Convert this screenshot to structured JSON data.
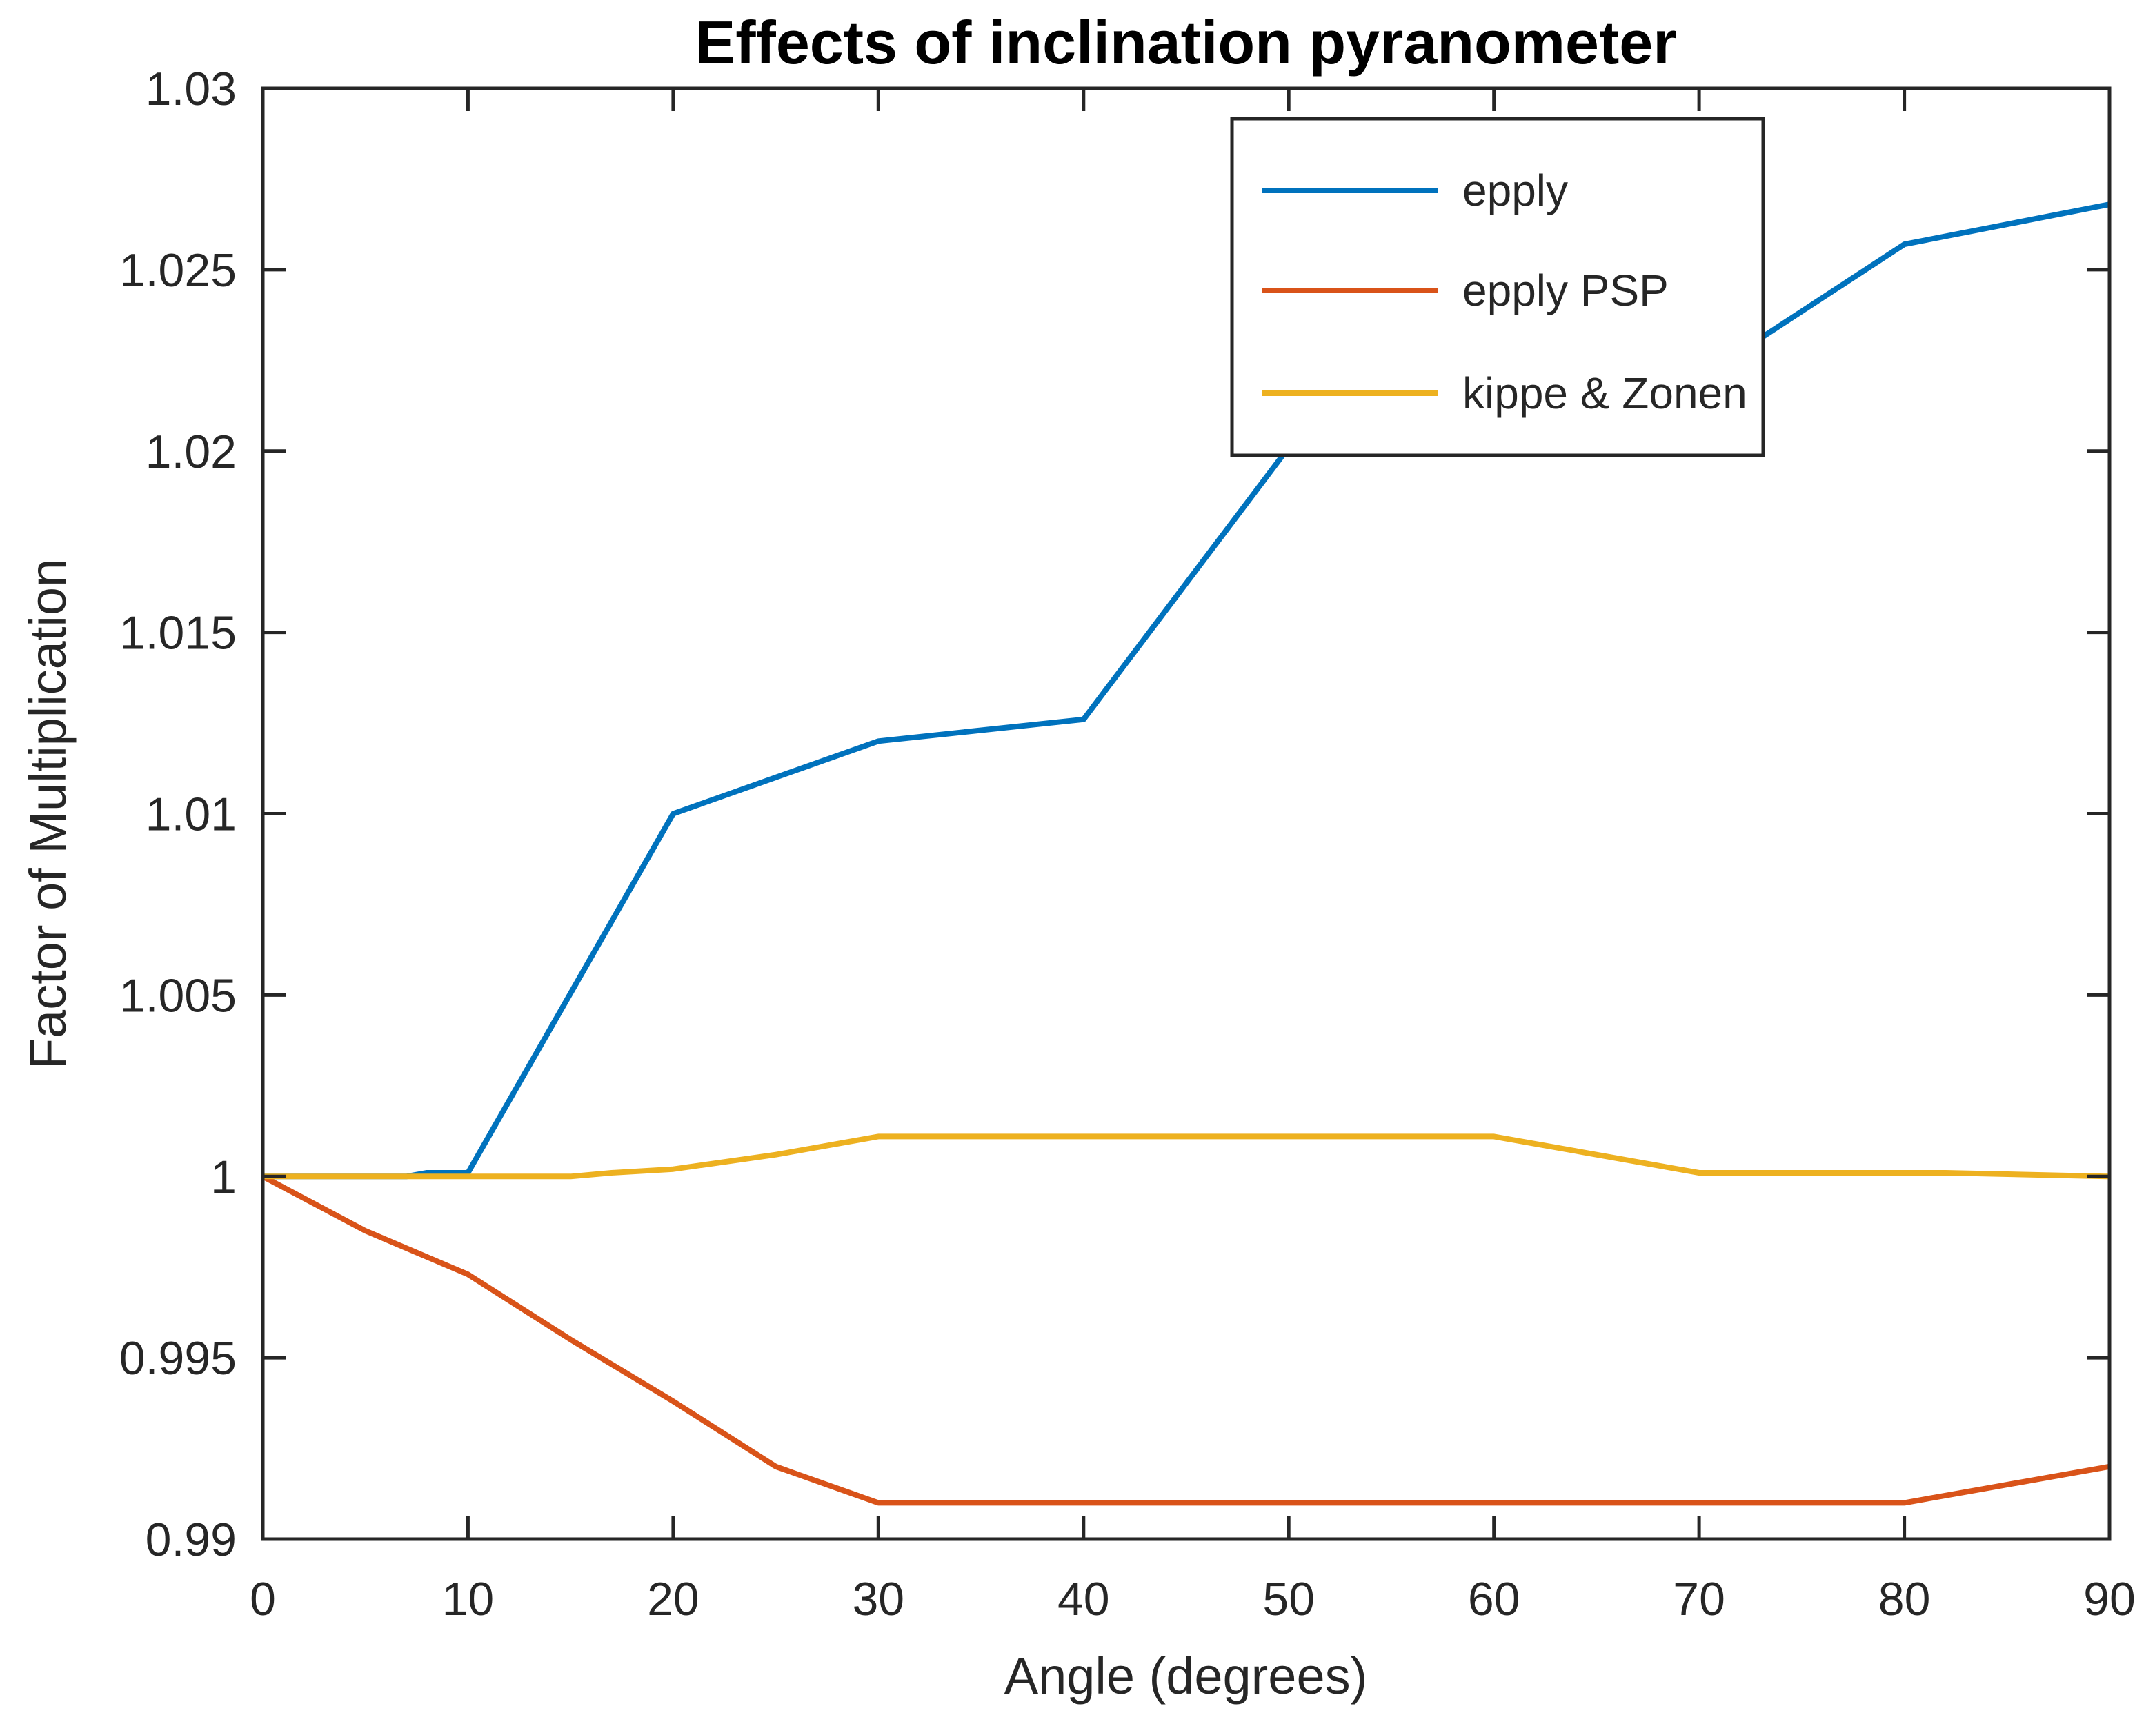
{
  "figure": {
    "title": "Effects of inclination pyranometer",
    "xlabel": "Angle (degrees)",
    "ylabel": "Factor of Multiplication"
  },
  "chart_data": {
    "type": "line",
    "title": "Effects of inclination pyranometer",
    "xlabel": "Angle (degrees)",
    "ylabel": "Factor of Multiplication",
    "xlim": [
      0,
      90
    ],
    "ylim": [
      0.99,
      1.03
    ],
    "x_ticks": [
      0,
      10,
      20,
      30,
      40,
      50,
      60,
      70,
      80,
      90
    ],
    "x_tick_labels": [
      "0",
      "10",
      "20",
      "30",
      "40",
      "50",
      "60",
      "70",
      "80",
      "90"
    ],
    "y_ticks": [
      0.99,
      0.995,
      1.0,
      1.005,
      1.01,
      1.015,
      1.02,
      1.025,
      1.03
    ],
    "y_tick_labels": [
      "0.99",
      "0.995",
      "1",
      "1.005",
      "1.01",
      "1.015",
      "1.02",
      "1.025",
      "1.03"
    ],
    "grid": false,
    "axis_color": "#262626",
    "background_color": "#ffffff",
    "legend": {
      "position": "upper-right-inside",
      "border": true,
      "entries": [
        "epply",
        "epply PSP",
        "kippe & Zonen"
      ]
    },
    "series": [
      {
        "name": "epply",
        "color": "#0072BD",
        "points": [
          [
            0,
            1.0
          ],
          [
            7,
            1.0
          ],
          [
            8,
            1.0001
          ],
          [
            10,
            1.0001
          ],
          [
            20,
            1.01
          ],
          [
            30,
            1.012
          ],
          [
            40,
            1.0126
          ],
          [
            50,
            1.0201
          ],
          [
            55,
            1.0203
          ],
          [
            60,
            1.0207
          ],
          [
            70,
            1.022
          ],
          [
            80,
            1.0257
          ],
          [
            90,
            1.0268
          ]
        ]
      },
      {
        "name": "epply PSP",
        "color": "#D95319",
        "points": [
          [
            0,
            1.0
          ],
          [
            5,
            0.9985
          ],
          [
            10,
            0.9973
          ],
          [
            15,
            0.9955
          ],
          [
            20,
            0.9938
          ],
          [
            25,
            0.992
          ],
          [
            30,
            0.991
          ],
          [
            40,
            0.991
          ],
          [
            50,
            0.991
          ],
          [
            60,
            0.991
          ],
          [
            70,
            0.991
          ],
          [
            80,
            0.991
          ],
          [
            90,
            0.992
          ]
        ]
      },
      {
        "name": "kippe & Zonen",
        "color": "#EDB120",
        "points": [
          [
            0,
            1.0
          ],
          [
            15,
            1.0
          ],
          [
            17,
            1.0001
          ],
          [
            20,
            1.0002
          ],
          [
            25,
            1.0006
          ],
          [
            30,
            1.0011
          ],
          [
            40,
            1.0011
          ],
          [
            50,
            1.0011
          ],
          [
            60,
            1.0011
          ],
          [
            70,
            1.0001
          ],
          [
            82,
            1.0001
          ],
          [
            90,
            1.0
          ]
        ]
      }
    ]
  }
}
